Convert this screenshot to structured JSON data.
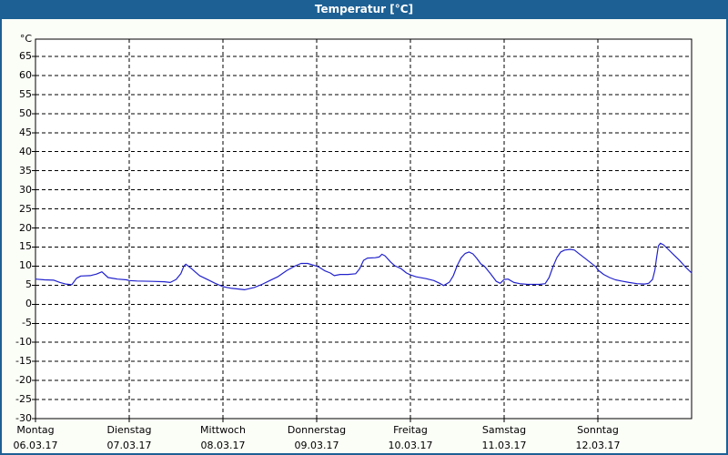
{
  "window": {
    "title": "Temperatur [°C]"
  },
  "colors": {
    "titlebar_bg": "#1d6094",
    "titlebar_text": "#ffffff",
    "frame": "#1d6094",
    "page_bg": "#fbfdf7",
    "plot_bg": "#ffffff",
    "axis": "#000000",
    "grid": "#000000",
    "text": "#000000",
    "line": "#2222cc"
  },
  "chart_data": {
    "type": "line",
    "title": "Temperatur [°C]",
    "y_unit_label": "°C",
    "ylabel": "Temperatur",
    "ylim": [
      -30,
      65
    ],
    "ytick_step": 5,
    "yticks": [
      65,
      60,
      55,
      50,
      45,
      40,
      35,
      30,
      25,
      20,
      15,
      10,
      5,
      0,
      -5,
      -10,
      -15,
      -20,
      -25,
      -30
    ],
    "grid": true,
    "legend": "none",
    "x_total_hours": 168,
    "x_days": [
      {
        "name": "Montag",
        "date": "06.03.17"
      },
      {
        "name": "Dienstag",
        "date": "07.03.17"
      },
      {
        "name": "Mittwoch",
        "date": "08.03.17"
      },
      {
        "name": "Donnerstag",
        "date": "09.03.17"
      },
      {
        "name": "Freitag",
        "date": "10.03.17"
      },
      {
        "name": "Samstag",
        "date": "11.03.17"
      },
      {
        "name": "Sonntag",
        "date": "12.03.17"
      }
    ],
    "series": [
      {
        "name": "Temperatur",
        "unit": "°C",
        "color": "#2222cc",
        "points_hour_temp": [
          [
            0,
            6.6
          ],
          [
            2.3,
            6.4
          ],
          [
            4.7,
            6.3
          ],
          [
            6.3,
            5.7
          ],
          [
            7.7,
            5.3
          ],
          [
            9.3,
            5.1
          ],
          [
            10.5,
            6.8
          ],
          [
            11.6,
            7.4
          ],
          [
            14,
            7.5
          ],
          [
            15.6,
            7.9
          ],
          [
            17,
            8.5
          ],
          [
            18.6,
            7.0
          ],
          [
            21,
            6.6
          ],
          [
            23.3,
            6.4
          ],
          [
            24,
            6.2
          ],
          [
            26,
            6.1
          ],
          [
            30,
            6.0
          ],
          [
            33,
            5.9
          ],
          [
            34.5,
            5.7
          ],
          [
            36,
            6.5
          ],
          [
            37.2,
            8.0
          ],
          [
            38,
            10.0
          ],
          [
            38.5,
            10.5
          ],
          [
            40,
            9.3
          ],
          [
            42,
            7.5
          ],
          [
            44,
            6.5
          ],
          [
            46,
            5.5
          ],
          [
            48,
            4.6
          ],
          [
            50,
            4.2
          ],
          [
            52,
            4.0
          ],
          [
            53.5,
            3.8
          ],
          [
            56,
            4.4
          ],
          [
            58,
            5.2
          ],
          [
            60,
            6.2
          ],
          [
            62,
            7.2
          ],
          [
            64.3,
            8.8
          ],
          [
            66.6,
            10.1
          ],
          [
            68,
            10.7
          ],
          [
            69.7,
            10.7
          ],
          [
            71.3,
            10.2
          ],
          [
            72.5,
            9.8
          ],
          [
            74,
            8.8
          ],
          [
            75.5,
            8.2
          ],
          [
            76.5,
            7.5
          ],
          [
            78,
            7.8
          ],
          [
            80,
            7.8
          ],
          [
            82,
            8.0
          ],
          [
            83,
            9.3
          ],
          [
            84,
            11.5
          ],
          [
            85,
            12.1
          ],
          [
            87,
            12.2
          ],
          [
            88,
            12.4
          ],
          [
            88.7,
            13.1
          ],
          [
            89.5,
            12.7
          ],
          [
            91,
            11.0
          ],
          [
            92,
            10.1
          ],
          [
            93.5,
            9.4
          ],
          [
            95,
            8.2
          ],
          [
            96,
            7.7
          ],
          [
            97.5,
            7.2
          ],
          [
            100,
            6.7
          ],
          [
            102,
            6.2
          ],
          [
            103.5,
            5.5
          ],
          [
            104.5,
            4.9
          ],
          [
            106,
            5.8
          ],
          [
            107,
            7.5
          ],
          [
            108,
            10.2
          ],
          [
            109,
            12.2
          ],
          [
            110,
            13.3
          ],
          [
            111,
            13.7
          ],
          [
            112,
            13.2
          ],
          [
            113,
            12.0
          ],
          [
            114,
            10.6
          ],
          [
            115,
            9.9
          ],
          [
            116.5,
            8.0
          ],
          [
            118,
            6.0
          ],
          [
            119,
            5.5
          ],
          [
            120,
            6.5
          ],
          [
            121,
            6.6
          ],
          [
            122.5,
            5.7
          ],
          [
            124,
            5.4
          ],
          [
            126,
            5.2
          ],
          [
            129,
            5.2
          ],
          [
            130.5,
            5.4
          ],
          [
            131.5,
            7.0
          ],
          [
            132.5,
            9.8
          ],
          [
            133.5,
            12.2
          ],
          [
            134.5,
            13.7
          ],
          [
            135.5,
            14.2
          ],
          [
            137,
            14.4
          ],
          [
            138,
            14.2
          ],
          [
            139,
            13.4
          ],
          [
            140.5,
            12.2
          ],
          [
            142,
            11.0
          ],
          [
            143.5,
            9.8
          ],
          [
            144,
            9.0
          ],
          [
            145.5,
            7.8
          ],
          [
            147,
            7.0
          ],
          [
            148.5,
            6.4
          ],
          [
            150,
            6.1
          ],
          [
            152,
            5.7
          ],
          [
            154,
            5.4
          ],
          [
            156,
            5.3
          ],
          [
            157,
            5.5
          ],
          [
            158,
            6.5
          ],
          [
            158.6,
            9.0
          ],
          [
            159,
            12.0
          ],
          [
            159.5,
            15.3
          ],
          [
            160,
            16.0
          ],
          [
            160.8,
            15.6
          ],
          [
            162,
            14.4
          ],
          [
            163.4,
            13.0
          ],
          [
            164.8,
            11.6
          ],
          [
            166.2,
            10.0
          ],
          [
            167.4,
            8.8
          ],
          [
            168,
            8.2
          ]
        ]
      }
    ]
  }
}
